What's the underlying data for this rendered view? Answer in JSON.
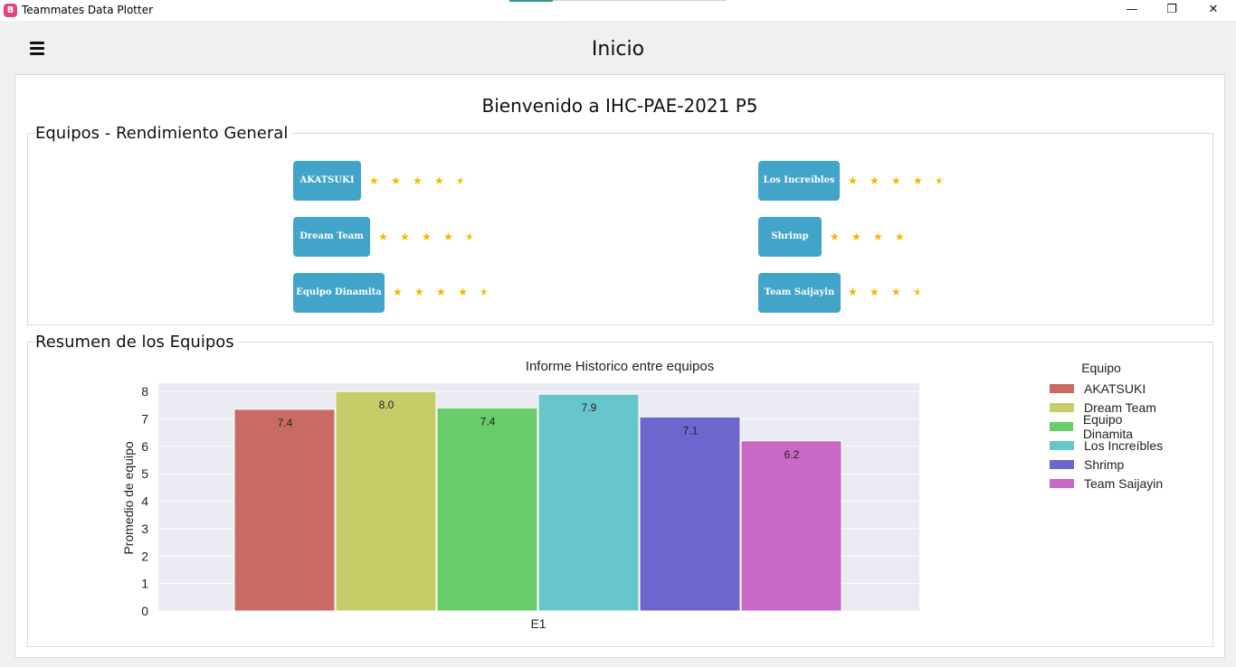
{
  "window": {
    "app_logo": "B",
    "title": "Teammates Data Plotter",
    "minimize": "—",
    "restore": "❐",
    "close": "✕"
  },
  "header": {
    "title": "Inicio",
    "menu_icon": "hamburger-menu-icon"
  },
  "main": {
    "welcome": "Bienvenido a IHC-PAE-2021 P5",
    "ratings_group": {
      "title": "Equipos - Rendimiento General",
      "teams": [
        {
          "name": "AKATSUKI",
          "rating": 4.5
        },
        {
          "name": "Los Increíbles",
          "rating": 4.5
        },
        {
          "name": "Dream Team",
          "rating": 4.5
        },
        {
          "name": "Shrimp",
          "rating": 4
        },
        {
          "name": "Equipo Dinamita",
          "rating": 4.5
        },
        {
          "name": "Team Saijayin",
          "rating": 3.5
        }
      ]
    },
    "summary_group": {
      "title": "Resumen de los Equipos"
    }
  },
  "chart_data": {
    "type": "bar",
    "title": "Informe Historico entre equipos",
    "xlabel": "",
    "ylabel": "Promedio de equipo",
    "categories": [
      "E1"
    ],
    "ylim": [
      0,
      8.3
    ],
    "yticks": [
      0,
      1,
      2,
      3,
      4,
      5,
      6,
      7,
      8
    ],
    "grid": true,
    "legend_title": "Equipo",
    "legend_position": "right",
    "series": [
      {
        "name": "AKATSUKI",
        "values": [
          7.35
        ],
        "label": "7.4",
        "color": "#c96b64"
      },
      {
        "name": "Dream Team",
        "values": [
          8.0
        ],
        "label": "8.0",
        "color": "#c6cc68"
      },
      {
        "name": "Equipo Dinamita",
        "values": [
          7.4
        ],
        "label": "7.4",
        "color": "#68cc6b"
      },
      {
        "name": "Los Increíbles",
        "values": [
          7.9
        ],
        "label": "7.9",
        "color": "#69c5cc"
      },
      {
        "name": "Shrimp",
        "values": [
          7.07
        ],
        "label": "7.1",
        "color": "#6e66cc"
      },
      {
        "name": "Team Saijayin",
        "values": [
          6.2
        ],
        "label": "6.2",
        "color": "#c969c6"
      }
    ]
  }
}
